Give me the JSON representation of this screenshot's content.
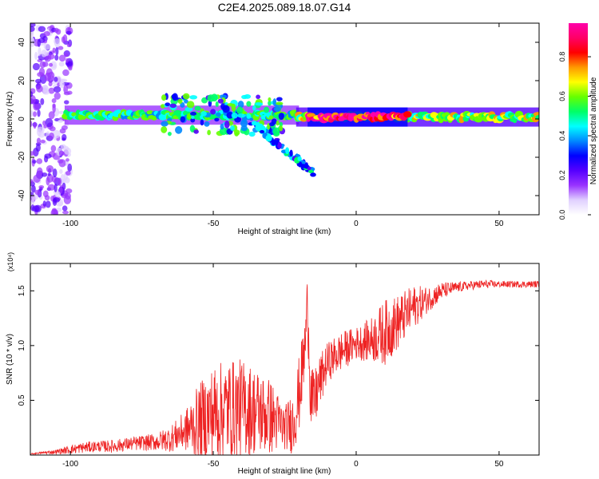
{
  "figure_title": "C2E4.2025.089.18.07.G14",
  "chart_data": [
    {
      "type": "heatmap",
      "xlabel": "Height of straight line (km)",
      "ylabel": "Frequency (Hz)",
      "xlim": [
        -114,
        64
      ],
      "ylim": [
        -50,
        50
      ],
      "xticks": [
        -100,
        -50,
        0,
        50
      ],
      "yticks": [
        -40,
        -20,
        0,
        20,
        40
      ],
      "colorbar": {
        "label": "Normalized spectral amplitude",
        "range": [
          0,
          0.97
        ],
        "ticks": [
          "0.0",
          "0.2",
          "0.4",
          "0.6",
          "0.8"
        ],
        "tick_values": [
          0,
          0.2,
          0.4,
          0.6,
          0.8
        ],
        "colors": [
          "#ffffff",
          "#e0d0ff",
          "#9933ff",
          "#5500ff",
          "#0000ff",
          "#0088ff",
          "#00ffff",
          "#00ff66",
          "#66ff00",
          "#ffff00",
          "#ff9900",
          "#ff0000",
          "#ff0066",
          "#ff00aa"
        ]
      },
      "features": [
        {
          "name": "noise band",
          "x_range": [
            -114,
            -100
          ],
          "freq_range": [
            -50,
            50
          ],
          "amplitude": 0.15
        },
        {
          "name": "carrier track",
          "x_range": [
            -102,
            -20
          ],
          "freq_center": 2,
          "amplitude": 0.5
        },
        {
          "name": "scatter cluster",
          "x_range": [
            -68,
            -25
          ],
          "freq_range": [
            -8,
            12
          ],
          "amplitude": 0.45
        },
        {
          "name": "descending branch",
          "x_range": [
            -38,
            -15
          ],
          "freq_start": 0,
          "freq_end": -28,
          "amplitude": 0.4
        },
        {
          "name": "stable carrier",
          "x_range": [
            -21,
            64
          ],
          "freq_center": 1,
          "amplitude": 0.6
        },
        {
          "name": "peak segment",
          "x_range": [
            -17,
            18
          ],
          "freq_center": 1,
          "amplitude": 0.9
        }
      ]
    },
    {
      "type": "line",
      "xlabel": "Height of straight line (km)",
      "ylabel": "SNR (10 * v/v)",
      "y_multiplier": "(x10⁴)",
      "xlim": [
        -114,
        64
      ],
      "ylim": [
        0,
        1.75
      ],
      "xticks": [
        -100,
        -50,
        0,
        50
      ],
      "yticks": [
        0.5,
        1.0,
        1.5
      ],
      "ytick_labels": [
        "0.5",
        "1.0",
        "1.5"
      ],
      "color": "#ee2222",
      "x": [
        -114,
        -110,
        -105,
        -100,
        -95,
        -90,
        -85,
        -80,
        -75,
        -70,
        -65,
        -60,
        -55,
        -50,
        -45,
        -40,
        -35,
        -30,
        -25,
        -22,
        -20,
        -18,
        -17,
        -16,
        -15,
        -13,
        -10,
        -5,
        0,
        5,
        10,
        15,
        20,
        25,
        30,
        35,
        40,
        45,
        50,
        55,
        60,
        64
      ],
      "y": [
        0.01,
        0.02,
        0.03,
        0.05,
        0.07,
        0.08,
        0.08,
        0.1,
        0.11,
        0.12,
        0.15,
        0.22,
        0.3,
        0.38,
        0.42,
        0.43,
        0.4,
        0.35,
        0.25,
        0.3,
        0.55,
        0.95,
        1.4,
        0.6,
        0.45,
        0.65,
        0.85,
        0.95,
        1.02,
        1.05,
        1.12,
        1.22,
        1.35,
        1.42,
        1.5,
        1.53,
        1.55,
        1.56,
        1.56,
        1.56,
        1.56,
        1.56
      ],
      "spread": [
        0.005,
        0.01,
        0.02,
        0.04,
        0.05,
        0.05,
        0.06,
        0.06,
        0.07,
        0.08,
        0.12,
        0.18,
        0.35,
        0.45,
        0.45,
        0.45,
        0.4,
        0.35,
        0.2,
        0.3,
        0.35,
        0.3,
        0.3,
        0.35,
        0.3,
        0.25,
        0.18,
        0.18,
        0.15,
        0.2,
        0.3,
        0.25,
        0.2,
        0.12,
        0.08,
        0.05,
        0.04,
        0.04,
        0.03,
        0.03,
        0.03,
        0.03
      ]
    }
  ]
}
